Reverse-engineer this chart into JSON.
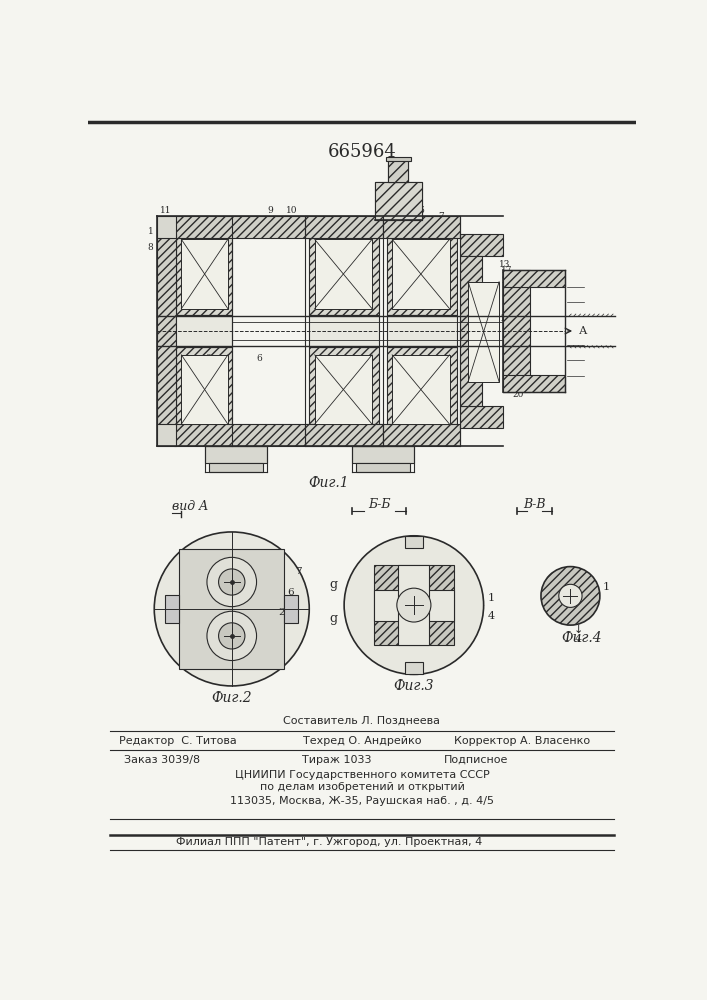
{
  "patent_number": "665964",
  "fig1_caption": "Фиг.1",
  "fig2_caption": "Фиг.2",
  "fig3_caption": "Фиг.3",
  "fig4_caption": "Фиг.4",
  "view_a_label": "вид A",
  "section_bb": "Б-Б",
  "section_vv": "В-В",
  "footer_line1_left": "Редактор  С. Титова",
  "footer_line1_mid": "Техред О. Андрейко",
  "footer_line1_right": "Корректор А. Власенко",
  "footer_line2_left": "Заказ 3039/8",
  "footer_line2_mid": "Тираж 1033",
  "footer_line2_right": "Подписное",
  "footer_line3": "ЦНИИПИ Государственного комитета СССР",
  "footer_line4": "по делам изобретений и открытий",
  "footer_line5": "113035, Москва, Ж-35, Раушская наб. , д. 4/5",
  "footer_line6": "Филиал ППП \"Патент\", г. Ужгород, ул. Проектная, 4",
  "bg_color": "#f5f5f0",
  "line_color": "#2a2a2a",
  "hatch_color": "#3a3a3a",
  "compositer_text": "Составитель Л. Позднеева"
}
